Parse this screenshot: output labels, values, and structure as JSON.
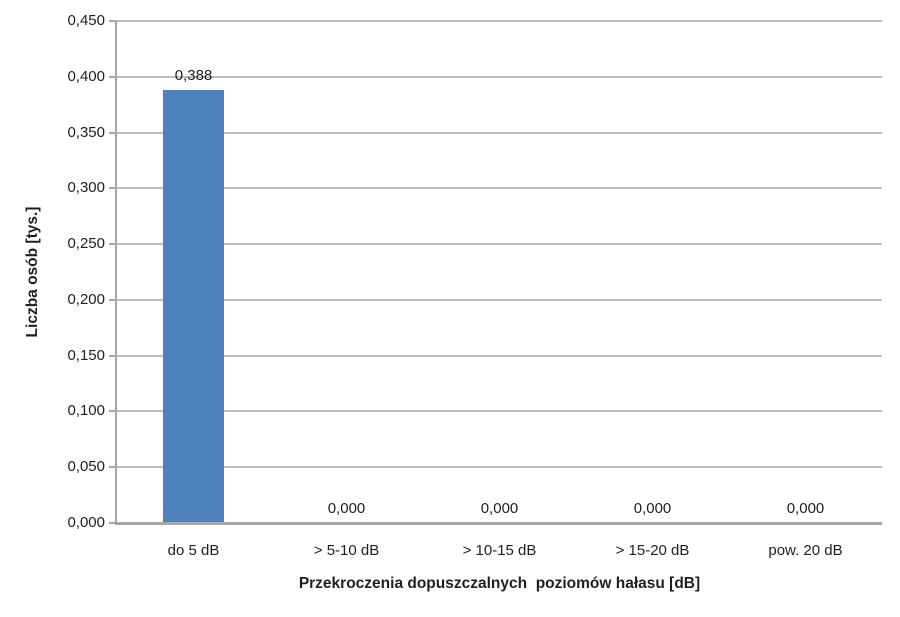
{
  "chart_data": {
    "type": "bar",
    "title": "",
    "categories": [
      "do 5 dB",
      "> 5-10 dB",
      "> 10-15 dB",
      "> 15-20 dB",
      "pow. 20 dB"
    ],
    "values": [
      0.388,
      0,
      0,
      0,
      0
    ],
    "data_labels": [
      "0,388",
      "0,000",
      "0,000",
      "0,000",
      "0,000"
    ],
    "xlabel": "Przekroczenia dopuszczalnych  poziomów hałasu [dB]",
    "ylabel": "Liczba osób [tys.]",
    "ylim": [
      0,
      0.45
    ],
    "ytick_step": 0.05,
    "ytick_labels": [
      "0,000",
      "0,050",
      "0,100",
      "0,150",
      "0,200",
      "0,250",
      "0,300",
      "0,350",
      "0,400",
      "0,450"
    ],
    "grid": true,
    "legend": false,
    "colors": {
      "bar": "#4F81BD",
      "gridline": "#BDBDBD",
      "axis": "#A6A6A6",
      "text": "#1F1F1F",
      "background": "#FFFFFF"
    }
  }
}
